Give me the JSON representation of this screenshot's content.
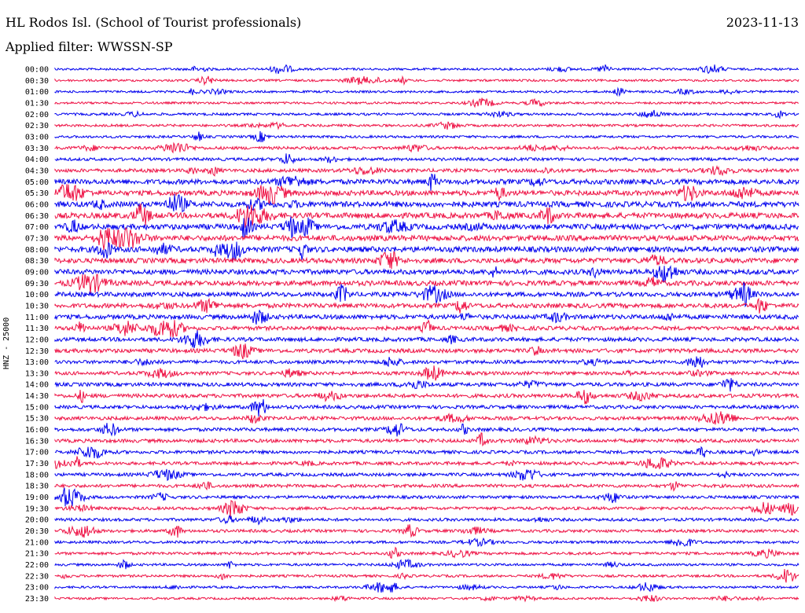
{
  "header": {
    "station": "HL Rodos Isl. (School of Tourist professionals)",
    "filter_label": "Applied filter: WWSSN-SP",
    "date": "2023-11-13"
  },
  "chart_data": {
    "type": "line",
    "title": "HL Rodos Isl. (School of Tourist professionals)",
    "ylabel": "HNZ - 25000",
    "colors": [
      "#0000ee",
      "#ee1144"
    ],
    "grid": false,
    "row_labels": [
      "00:00",
      "00:30",
      "01:00",
      "01:30",
      "02:00",
      "02:30",
      "03:00",
      "03:30",
      "04:00",
      "04:30",
      "05:00",
      "05:30",
      "06:00",
      "06:30",
      "07:00",
      "07:30",
      "08:00",
      "08:30",
      "09:00",
      "09:30",
      "10:00",
      "10:30",
      "11:00",
      "11:30",
      "12:00",
      "12:30",
      "13:00",
      "13:30",
      "14:00",
      "14:30",
      "15:00",
      "15:30",
      "16:00",
      "16:30",
      "17:00",
      "17:30",
      "18:00",
      "18:30",
      "19:00",
      "19:30",
      "20:00",
      "20:30",
      "21:00",
      "21:30",
      "22:00",
      "22:30",
      "23:00",
      "23:30"
    ],
    "amplitude_level": [
      0.5,
      0.5,
      0.5,
      0.5,
      0.6,
      0.6,
      0.6,
      0.8,
      0.8,
      1.0,
      1.6,
      1.6,
      1.8,
      1.8,
      1.8,
      1.8,
      1.8,
      1.6,
      1.6,
      1.6,
      1.4,
      1.4,
      1.4,
      1.2,
      1.2,
      1.2,
      1.0,
      1.0,
      1.1,
      1.1,
      1.0,
      1.0,
      1.0,
      1.0,
      0.9,
      0.9,
      0.9,
      0.9,
      0.8,
      0.8,
      0.8,
      0.8,
      0.7,
      0.7,
      0.6,
      0.6,
      0.5,
      0.5
    ]
  }
}
